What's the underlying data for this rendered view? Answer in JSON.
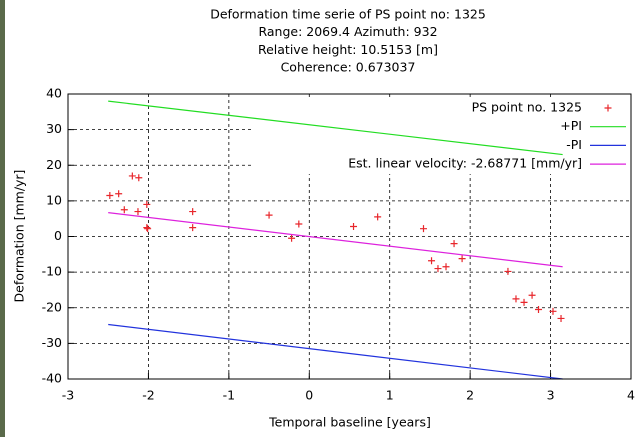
{
  "chart_data": {
    "type": "scatter",
    "title": [
      "Deformation time serie of PS point no: 1325",
      "Range: 2069.4 Azimuth: 932",
      "Relative height: 10.5153 [m]",
      "Coherence: 0.673037"
    ],
    "x_label": "Temporal baseline [years]",
    "y_label": "Deformation [mm/yr]",
    "xlim": [
      -3,
      4
    ],
    "xticks": [
      -3,
      -2,
      -1,
      0,
      1,
      2,
      3,
      4
    ],
    "ylim": [
      -40,
      40
    ],
    "yticks": [
      -40,
      -30,
      -20,
      -10,
      0,
      10,
      20,
      30,
      40
    ],
    "grid": true,
    "legend": "top-right",
    "series": [
      {
        "name": "PS point no. 1325",
        "color": "#e8262b",
        "style": "points",
        "x": [
          -2.48,
          -2.37,
          -2.3,
          -2.2,
          -2.12,
          -2.13,
          -2.02,
          -2.02,
          -2.01,
          -1.45,
          -1.45,
          -0.5,
          -0.22,
          -0.13,
          0.55,
          0.85,
          1.42,
          1.52,
          1.6,
          1.7,
          1.8,
          1.9,
          2.47,
          2.57,
          2.67,
          2.77,
          2.85,
          3.03,
          3.13
        ],
        "values": [
          11.5,
          12,
          7.5,
          17,
          16.5,
          7,
          9,
          2.5,
          2.2,
          7,
          2.5,
          6,
          -0.5,
          3.5,
          2.8,
          5.5,
          2.2,
          -6.8,
          -9,
          -8.5,
          -2,
          -6.2,
          -9.8,
          -17.5,
          -18.5,
          -16.5,
          -20.5,
          -21,
          -23
        ]
      },
      {
        "name": "+PI",
        "color": "#22dd22",
        "style": "lines",
        "x": [
          -2.5,
          3.15
        ],
        "values": [
          38,
          23
        ]
      },
      {
        "name": "-PI",
        "color": "#2233dd",
        "style": "lines",
        "x": [
          -2.5,
          3.15
        ],
        "values": [
          -24.7,
          -40
        ]
      },
      {
        "name": "Est. linear velocity: -2.68771 [mm/yr]",
        "color": "#dd22dd",
        "style": "lines",
        "x": [
          -2.5,
          3.15
        ],
        "values": [
          6.7,
          -8.5
        ]
      }
    ]
  }
}
